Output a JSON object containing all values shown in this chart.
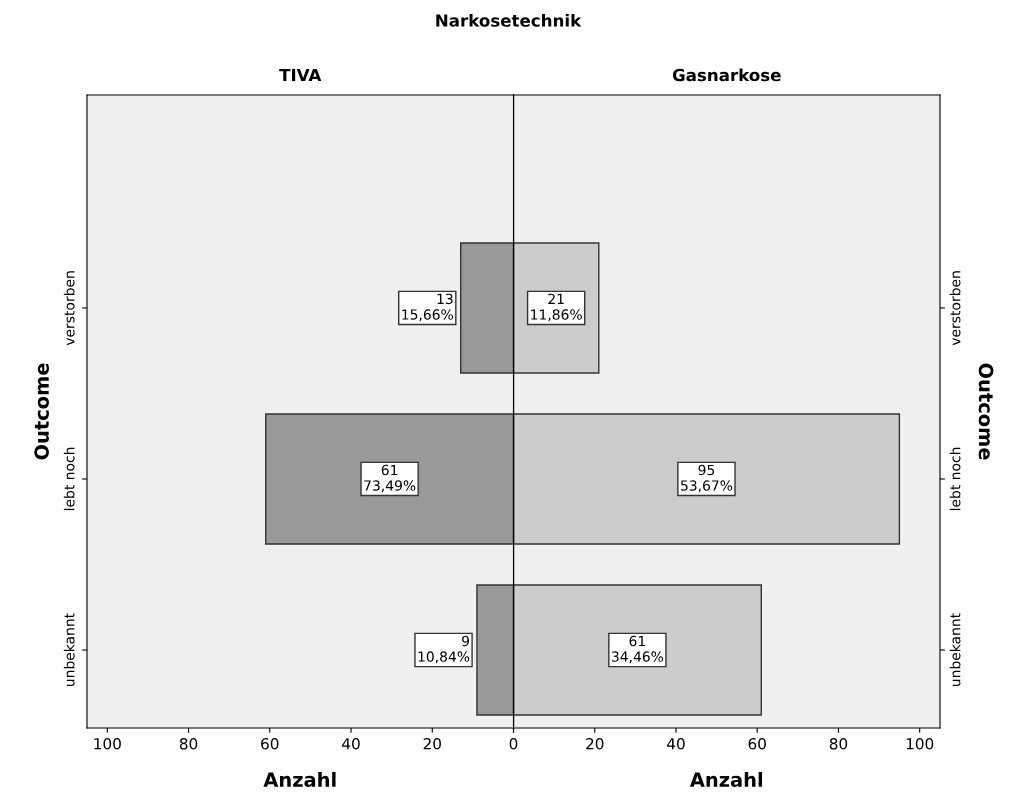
{
  "chart_data": [
    {
      "type": "bar",
      "orientation": "horizontal",
      "title": "Narkosetechnik",
      "subtitle": "TIVA",
      "xlabel": "Anzahl",
      "ylabel": "Outcome",
      "categories": [
        "verstorben",
        "lebt noch",
        "unbekannt"
      ],
      "values": [
        13,
        61,
        9
      ],
      "color": "#999999",
      "value_labels": [
        "13\n15,66%",
        "61\n73,49%",
        "9\n10,84%"
      ],
      "xlim": [
        105,
        0
      ],
      "xticks": [
        {
          "value": 0,
          "label": null
        },
        20,
        40,
        60,
        80,
        100
      ],
      "grid": false,
      "legend": false
    },
    {
      "type": "bar",
      "orientation": "horizontal",
      "subtitle": "Gasnarkose",
      "xlabel": "Anzahl",
      "ylabel": "Outcome",
      "categories": [
        "verstorben",
        "lebt noch",
        "unbekannt"
      ],
      "values": [
        21,
        95,
        61
      ],
      "color": "#cccccc",
      "value_labels": [
        "21\n11,86%",
        "95\n53,67%",
        "61\n34,46%"
      ],
      "xlim": [
        0,
        105
      ],
      "xticks": [
        0,
        20,
        40,
        60,
        80,
        100
      ],
      "grid": false,
      "legend": false
    }
  ]
}
